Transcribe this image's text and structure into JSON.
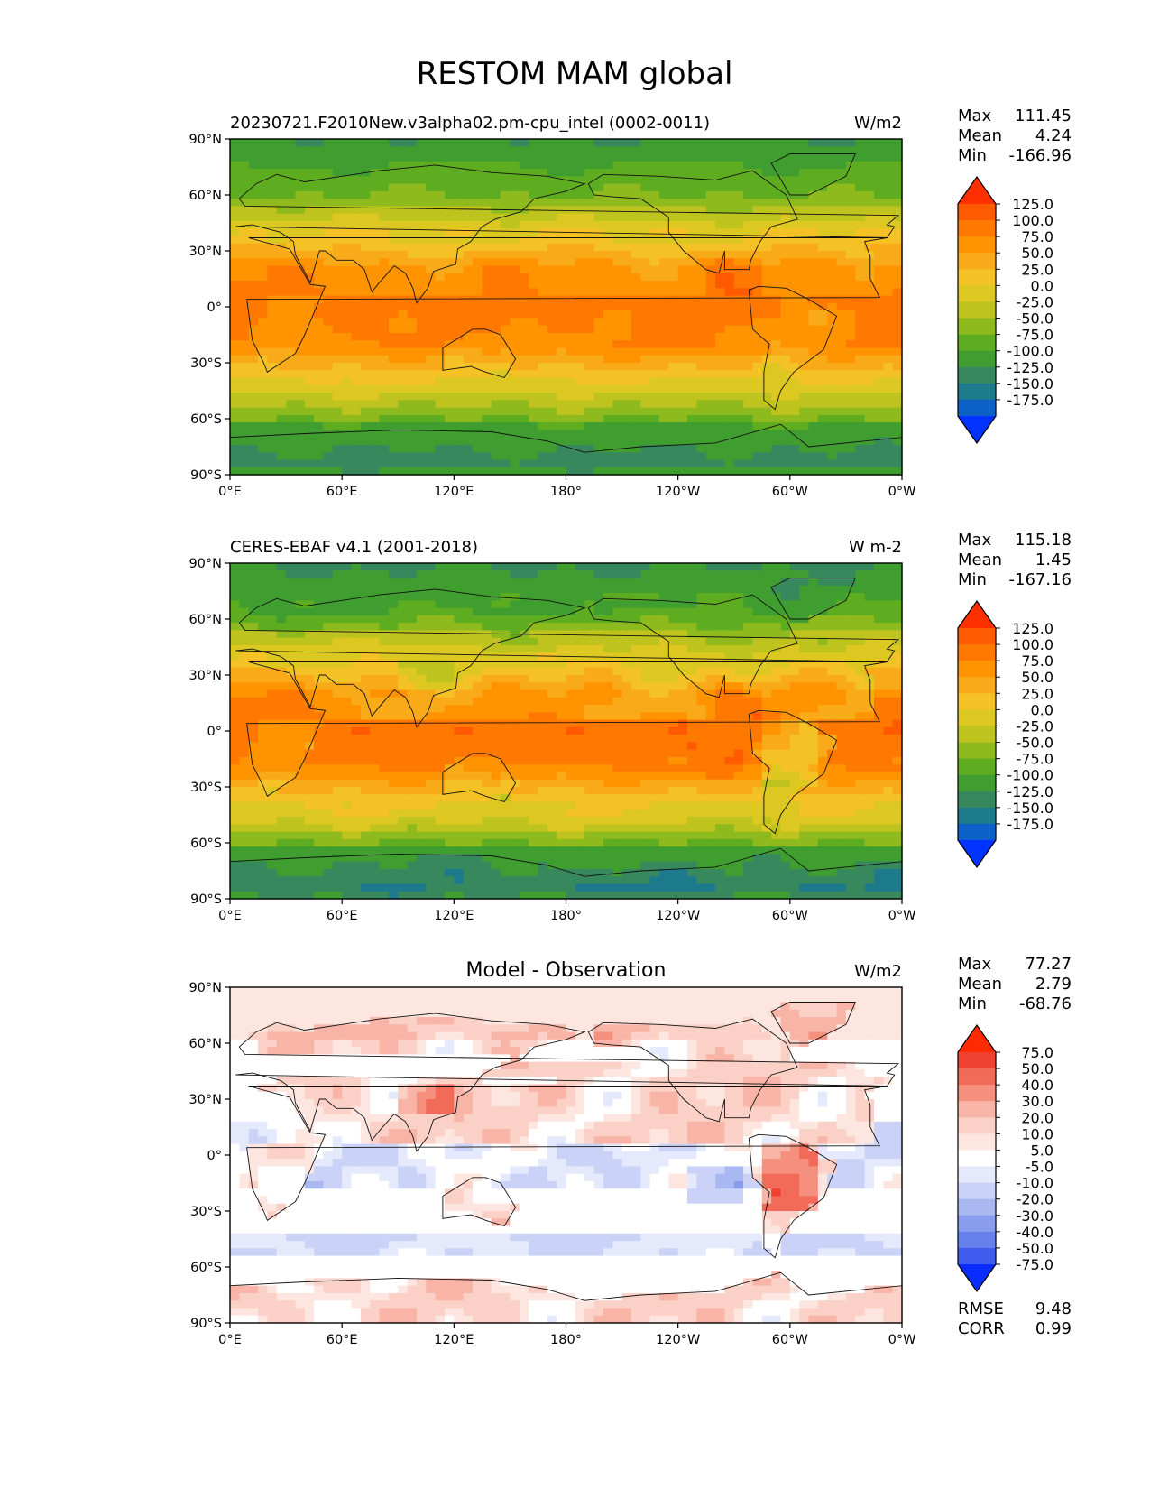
{
  "figure_title": "RESTOM MAM global",
  "chart_data": [
    {
      "type": "heatmap",
      "title": "20230721.F2010New.v3alpha02.pm-cpu_intel (0002-0011)",
      "units": "W/m2",
      "stats": {
        "max": "111.45",
        "mean": "4.24",
        "min": "-166.96"
      },
      "labels": {
        "max": "Max",
        "mean": "Mean",
        "min": "Min"
      },
      "xticks": [
        "0°E",
        "60°E",
        "120°E",
        "180°",
        "120°W",
        "60°W",
        "0°W"
      ],
      "yticks": [
        "90°N",
        "60°N",
        "30°N",
        "0°",
        "30°S",
        "60°S",
        "90°S"
      ],
      "xlim": [
        0,
        360
      ],
      "ylim": [
        -90,
        90
      ],
      "colorbar": {
        "levels": [
          "125.0",
          "100.0",
          "75.0",
          "50.0",
          "25.0",
          "0.0",
          "-25.0",
          "-50.0",
          "-75.0",
          "-100.0",
          "-125.0",
          "-150.0",
          "-175.0"
        ],
        "colors": [
          "#ff3000",
          "#ff5a00",
          "#ff7800",
          "#ff9400",
          "#f9aa18",
          "#f4c224",
          "#dcc820",
          "#bec31e",
          "#8fba1d",
          "#5eac20",
          "#3f9e2f",
          "#38885e",
          "#1d7a8c",
          "#0c60c8",
          "#0033ff"
        ]
      },
      "field": "model"
    },
    {
      "type": "heatmap",
      "title": "CERES-EBAF v4.1 (2001-2018)",
      "units": "W m-2",
      "stats": {
        "max": "115.18",
        "mean": "1.45",
        "min": "-167.16"
      },
      "labels": {
        "max": "Max",
        "mean": "Mean",
        "min": "Min"
      },
      "xticks": [
        "0°E",
        "60°E",
        "120°E",
        "180°",
        "120°W",
        "60°W",
        "0°W"
      ],
      "yticks": [
        "90°N",
        "60°N",
        "30°N",
        "0°",
        "30°S",
        "60°S",
        "90°S"
      ],
      "xlim": [
        0,
        360
      ],
      "ylim": [
        -90,
        90
      ],
      "colorbar": {
        "levels": [
          "125.0",
          "100.0",
          "75.0",
          "50.0",
          "25.0",
          "0.0",
          "-25.0",
          "-50.0",
          "-75.0",
          "-100.0",
          "-125.0",
          "-150.0",
          "-175.0"
        ],
        "colors": [
          "#ff3000",
          "#ff5a00",
          "#ff7800",
          "#ff9400",
          "#f9aa18",
          "#f4c224",
          "#dcc820",
          "#bec31e",
          "#8fba1d",
          "#5eac20",
          "#3f9e2f",
          "#38885e",
          "#1d7a8c",
          "#0c60c8",
          "#0033ff"
        ]
      },
      "field": "obs"
    },
    {
      "type": "heatmap",
      "title": "Model - Observation",
      "units": "W/m2",
      "stats": {
        "max": "77.27",
        "mean": "2.79",
        "min": "-68.76"
      },
      "labels": {
        "max": "Max",
        "mean": "Mean",
        "min": "Min"
      },
      "extra_stats": {
        "rmse_label": "RMSE",
        "rmse": "9.48",
        "corr_label": "CORR",
        "corr": "0.99"
      },
      "xticks": [
        "0°E",
        "60°E",
        "120°E",
        "180°",
        "120°W",
        "60°W",
        "0°W"
      ],
      "yticks": [
        "90°N",
        "60°N",
        "30°N",
        "0°",
        "30°S",
        "60°S",
        "90°S"
      ],
      "xlim": [
        0,
        360
      ],
      "ylim": [
        -90,
        90
      ],
      "colorbar": {
        "levels": [
          "75.0",
          "50.0",
          "40.0",
          "30.0",
          "20.0",
          "10.0",
          "5.0",
          "-5.0",
          "-10.0",
          "-20.0",
          "-30.0",
          "-40.0",
          "-50.0",
          "-75.0"
        ],
        "colors": [
          "#ff2a00",
          "#ef4030",
          "#f26a58",
          "#f5907e",
          "#f8b4a6",
          "#fbd0c6",
          "#fde6e0",
          "#ffffff",
          "#e4e9fb",
          "#cad3f7",
          "#aab8f2",
          "#8a9cee",
          "#6680ec",
          "#3f5cef",
          "#0a2dff"
        ]
      },
      "field": "diff"
    }
  ]
}
